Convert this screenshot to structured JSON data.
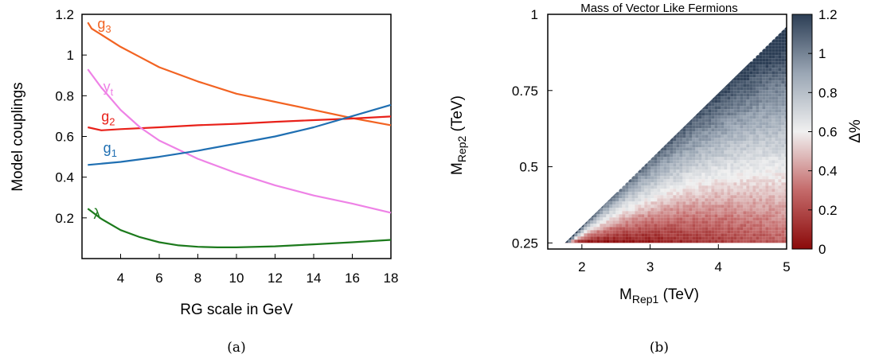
{
  "chart_data": [
    {
      "type": "line",
      "caption": "(a)",
      "xlabel": "RG scale in GeV",
      "ylabel": "Model couplings",
      "xlim": [
        2,
        18
      ],
      "ylim": [
        0,
        1.2
      ],
      "x_ticks": [
        "4",
        "6",
        "8",
        "10",
        "12",
        "14",
        "16",
        "18"
      ],
      "y_ticks": [
        "0.2",
        "0.4",
        "0.6",
        "0.8",
        "1",
        "1.2"
      ],
      "series": [
        {
          "name": "g3",
          "label_base": "g",
          "label_sub": "3",
          "color": "#f26322",
          "x": [
            2.3,
            2.5,
            3,
            4,
            5,
            6,
            8,
            10,
            12,
            14,
            16,
            18
          ],
          "y": [
            1.16,
            1.13,
            1.1,
            1.04,
            0.99,
            0.94,
            0.87,
            0.81,
            0.77,
            0.73,
            0.69,
            0.655
          ]
        },
        {
          "name": "g2",
          "label_base": "g",
          "label_sub": "2",
          "color": "#e8211a",
          "x": [
            2.3,
            3,
            4,
            6,
            8,
            10,
            12,
            14,
            16,
            18
          ],
          "y": [
            0.645,
            0.63,
            0.636,
            0.645,
            0.655,
            0.662,
            0.672,
            0.68,
            0.688,
            0.698
          ]
        },
        {
          "name": "yt",
          "label_base": "y",
          "label_sub": "t",
          "color": "#ee82e6",
          "x": [
            2.3,
            3,
            4,
            5,
            6,
            8,
            10,
            12,
            14,
            16,
            18
          ],
          "y": [
            0.93,
            0.84,
            0.73,
            0.645,
            0.58,
            0.49,
            0.42,
            0.36,
            0.31,
            0.27,
            0.225
          ]
        },
        {
          "name": "g1",
          "label_base": "g",
          "label_sub": "1",
          "color": "#1f6fb2",
          "x": [
            2.3,
            4,
            6,
            8,
            10,
            12,
            14,
            16,
            18
          ],
          "y": [
            0.46,
            0.475,
            0.5,
            0.53,
            0.565,
            0.6,
            0.645,
            0.7,
            0.755
          ]
        },
        {
          "name": "lambda",
          "label_base": "λ",
          "label_sub": "",
          "color": "#1c7a1c",
          "x": [
            2.3,
            3,
            4,
            5,
            6,
            7,
            8,
            9,
            10,
            12,
            14,
            16,
            18
          ],
          "y": [
            0.245,
            0.195,
            0.14,
            0.105,
            0.08,
            0.065,
            0.058,
            0.055,
            0.055,
            0.06,
            0.07,
            0.08,
            0.092
          ]
        }
      ]
    },
    {
      "type": "heatmap",
      "caption": "(b)",
      "title": "Mass of Vector Like Fermions",
      "xlabel_base": "M",
      "xlabel_sub": "Rep1",
      "xlabel_unit": " (TeV)",
      "ylabel_base": "M",
      "ylabel_sub": "Rep2",
      "ylabel_unit": " (TeV)",
      "colorbar_label": "Δ%",
      "xlim": [
        1.5,
        5
      ],
      "ylim": [
        0.23,
        1.0
      ],
      "x_ticks": [
        "2",
        "3",
        "4",
        "5"
      ],
      "y_ticks": [
        "0.25",
        "0.5",
        "0.75",
        "1"
      ],
      "colorbar_ticks": [
        "0",
        "0.2",
        "0.4",
        "0.6",
        "0.8",
        "1",
        "1.2"
      ],
      "colorbar_range": [
        0,
        1.2
      ],
      "region": {
        "x_min": 1.75,
        "x_max": 5.0,
        "y_min": 0.25,
        "upper_edge_at_x_max": 0.96
      },
      "colormap": [
        "#8b0a0a",
        "#c46a6a",
        "#f0f0f0",
        "#9aa6b4",
        "#2c3e55"
      ]
    }
  ]
}
